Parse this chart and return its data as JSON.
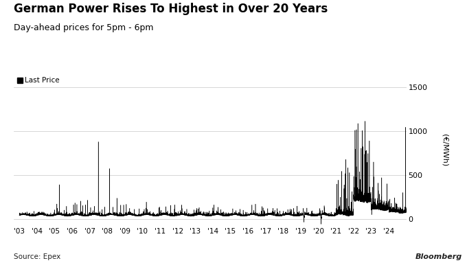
{
  "title": "German Power Rises To Highest in Over 20 Years",
  "subtitle": "Day-ahead prices for 5pm - 6pm",
  "legend_label": "Last Price",
  "source": "Source: Epex",
  "branding": "Bloomberg",
  "ylabel": "(€/MWh)",
  "yticks": [
    0,
    500,
    1000,
    1500
  ],
  "ylim": [
    -80,
    1650
  ],
  "line_color": "#000000",
  "background_color": "#ffffff",
  "grid_color": "#d0d0d0",
  "start_year": 2003,
  "end_year": 2024,
  "xtick_labels": [
    "'03",
    "'04",
    "'05",
    "'06",
    "'07",
    "'08",
    "'09",
    "'10",
    "'11",
    "'12",
    "'13",
    "'14",
    "'15",
    "'16",
    "'17",
    "'18",
    "'19",
    "'20",
    "'21",
    "'22",
    "'23",
    "'24"
  ]
}
